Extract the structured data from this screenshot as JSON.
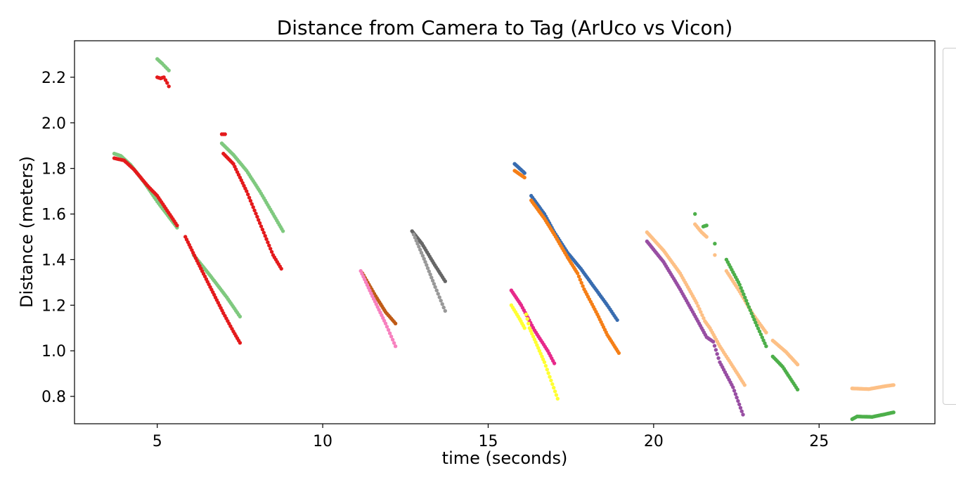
{
  "chart_data": {
    "type": "scatter",
    "title": "Distance from Camera to Tag (ArUco vs Vicon)",
    "xlabel": "time (seconds)",
    "ylabel": "Distance (meters)",
    "xlim": [
      2.5,
      28.5
    ],
    "ylim": [
      0.68,
      2.36
    ],
    "xticks": [
      5,
      10,
      15,
      20,
      25
    ],
    "xtick_labels": [
      "5",
      "10",
      "15",
      "20",
      "25"
    ],
    "yticks": [
      0.8,
      1.0,
      1.2,
      1.4,
      1.6,
      1.8,
      2.0,
      2.2
    ],
    "ytick_labels": [
      "0.8",
      "1.0",
      "1.2",
      "1.4",
      "1.6",
      "1.8",
      "2.0",
      "2.2"
    ],
    "grid": false,
    "legend": "right (cut off)",
    "segments": [
      {
        "color": "#7fc97f",
        "points": [
          [
            3.7,
            1.865
          ],
          [
            3.9,
            1.855
          ],
          [
            4.2,
            1.815
          ],
          [
            4.6,
            1.74
          ],
          [
            5.0,
            1.655
          ],
          [
            5.6,
            1.54
          ]
        ]
      },
      {
        "color": "#e41a1c",
        "points": [
          [
            3.7,
            1.845
          ],
          [
            4.0,
            1.835
          ],
          [
            4.3,
            1.795
          ],
          [
            4.7,
            1.725
          ],
          [
            5.0,
            1.68
          ],
          [
            5.3,
            1.615
          ],
          [
            5.6,
            1.55
          ]
        ]
      },
      {
        "color": "#7fc97f",
        "points": [
          [
            6.1,
            1.42
          ],
          [
            6.6,
            1.33
          ],
          [
            7.1,
            1.235
          ],
          [
            7.5,
            1.15
          ]
        ]
      },
      {
        "color": "#e41a1c",
        "points": [
          [
            5.85,
            1.5
          ],
          [
            6.2,
            1.395
          ],
          [
            6.6,
            1.28
          ],
          [
            7.0,
            1.165
          ],
          [
            7.3,
            1.085
          ],
          [
            7.5,
            1.035
          ]
        ]
      },
      {
        "color": "#7fc97f",
        "points": [
          [
            5.0,
            2.28
          ],
          [
            5.15,
            2.26
          ],
          [
            5.25,
            2.245
          ],
          [
            5.35,
            2.23
          ]
        ]
      },
      {
        "color": "#e41a1c",
        "points": [
          [
            5.0,
            2.2
          ],
          [
            5.1,
            2.195
          ],
          [
            5.2,
            2.2
          ],
          [
            5.3,
            2.175
          ],
          [
            5.35,
            2.16
          ]
        ]
      },
      {
        "color": "#7fc97f",
        "points": [
          [
            6.95,
            1.91
          ],
          [
            7.3,
            1.86
          ],
          [
            7.7,
            1.79
          ],
          [
            8.1,
            1.7
          ],
          [
            8.5,
            1.6
          ],
          [
            8.8,
            1.525
          ]
        ]
      },
      {
        "color": "#e41a1c",
        "points": [
          [
            6.95,
            1.95
          ],
          [
            7.05,
            1.95
          ]
        ]
      },
      {
        "color": "#e41a1c",
        "points": [
          [
            7.0,
            1.865
          ],
          [
            7.3,
            1.82
          ],
          [
            7.7,
            1.7
          ],
          [
            8.1,
            1.56
          ],
          [
            8.5,
            1.42
          ],
          [
            8.75,
            1.36
          ]
        ]
      },
      {
        "color": "#bf5b17",
        "points": [
          [
            11.2,
            1.34
          ],
          [
            11.6,
            1.24
          ],
          [
            11.9,
            1.17
          ],
          [
            12.2,
            1.12
          ]
        ]
      },
      {
        "color": "#f781bf",
        "points": [
          [
            11.15,
            1.35
          ],
          [
            11.5,
            1.24
          ],
          [
            11.9,
            1.12
          ],
          [
            12.2,
            1.02
          ]
        ]
      },
      {
        "color": "#666666",
        "points": [
          [
            12.7,
            1.525
          ],
          [
            13.0,
            1.47
          ],
          [
            13.35,
            1.385
          ],
          [
            13.7,
            1.305
          ]
        ]
      },
      {
        "color": "#999999",
        "points": [
          [
            12.75,
            1.51
          ],
          [
            13.1,
            1.39
          ],
          [
            13.4,
            1.28
          ],
          [
            13.7,
            1.175
          ]
        ]
      },
      {
        "color": "#e7298a",
        "points": [
          [
            15.7,
            1.265
          ],
          [
            16.0,
            1.2
          ],
          [
            16.4,
            1.09
          ],
          [
            16.8,
            1.0
          ],
          [
            17.0,
            0.945
          ]
        ]
      },
      {
        "color": "#ffff33",
        "points": [
          [
            15.7,
            1.2
          ],
          [
            15.95,
            1.14
          ],
          [
            16.1,
            1.1
          ]
        ]
      },
      {
        "color": "#ffff33",
        "points": [
          [
            16.15,
            1.16
          ],
          [
            16.25,
            1.1
          ],
          [
            16.4,
            1.05
          ],
          [
            16.7,
            0.95
          ],
          [
            16.9,
            0.87
          ],
          [
            17.1,
            0.79
          ]
        ]
      },
      {
        "color": "#386cb0",
        "points": [
          [
            15.8,
            1.82
          ],
          [
            15.95,
            1.8
          ],
          [
            16.1,
            1.78
          ]
        ]
      },
      {
        "color": "#f57f17",
        "points": [
          [
            15.8,
            1.79
          ],
          [
            15.95,
            1.775
          ],
          [
            16.1,
            1.76
          ]
        ]
      },
      {
        "color": "#386cb0",
        "points": [
          [
            16.3,
            1.68
          ],
          [
            16.7,
            1.6
          ],
          [
            17.0,
            1.52
          ],
          [
            17.4,
            1.43
          ],
          [
            17.8,
            1.36
          ],
          [
            18.2,
            1.28
          ],
          [
            18.6,
            1.2
          ],
          [
            18.9,
            1.135
          ]
        ]
      },
      {
        "color": "#f57f17",
        "points": [
          [
            16.3,
            1.66
          ],
          [
            16.7,
            1.58
          ],
          [
            17.0,
            1.51
          ],
          [
            17.4,
            1.41
          ],
          [
            17.7,
            1.34
          ],
          [
            17.9,
            1.27
          ],
          [
            18.3,
            1.16
          ],
          [
            18.6,
            1.07
          ],
          [
            18.95,
            0.99
          ]
        ]
      },
      {
        "color": "#984ea3",
        "points": [
          [
            19.8,
            1.48
          ],
          [
            20.3,
            1.39
          ],
          [
            20.8,
            1.27
          ],
          [
            21.3,
            1.14
          ],
          [
            21.6,
            1.06
          ],
          [
            21.8,
            1.04
          ],
          [
            22.0,
            0.95
          ],
          [
            22.4,
            0.84
          ],
          [
            22.7,
            0.72
          ]
        ]
      },
      {
        "color": "#fdc086",
        "points": [
          [
            19.8,
            1.52
          ],
          [
            20.3,
            1.44
          ],
          [
            20.8,
            1.34
          ],
          [
            21.3,
            1.21
          ],
          [
            21.55,
            1.13
          ],
          [
            21.7,
            1.1
          ],
          [
            22.0,
            1.02
          ],
          [
            22.4,
            0.93
          ],
          [
            22.75,
            0.85
          ]
        ]
      },
      {
        "color": "#4daf4a",
        "points": [
          [
            21.25,
            1.6
          ]
        ]
      },
      {
        "color": "#fdc086",
        "points": [
          [
            21.25,
            1.555
          ],
          [
            21.45,
            1.52
          ],
          [
            21.6,
            1.5
          ]
        ]
      },
      {
        "color": "#4daf4a",
        "points": [
          [
            21.5,
            1.545
          ],
          [
            21.6,
            1.55
          ]
        ]
      },
      {
        "color": "#4daf4a",
        "points": [
          [
            21.85,
            1.47
          ]
        ]
      },
      {
        "color": "#fdc086",
        "points": [
          [
            21.85,
            1.42
          ]
        ]
      },
      {
        "color": "#fdc086",
        "points": [
          [
            22.2,
            1.35
          ],
          [
            22.6,
            1.26
          ],
          [
            23.0,
            1.16
          ],
          [
            23.4,
            1.08
          ]
        ]
      },
      {
        "color": "#4daf4a",
        "points": [
          [
            22.2,
            1.4
          ],
          [
            22.6,
            1.29
          ],
          [
            23.0,
            1.15
          ],
          [
            23.4,
            1.02
          ]
        ]
      },
      {
        "color": "#fdc086",
        "points": [
          [
            23.6,
            1.045
          ],
          [
            24.0,
            0.995
          ],
          [
            24.35,
            0.94
          ]
        ]
      },
      {
        "color": "#4daf4a",
        "points": [
          [
            23.6,
            0.975
          ],
          [
            23.9,
            0.93
          ],
          [
            24.35,
            0.83
          ]
        ]
      },
      {
        "color": "#fdc086",
        "points": [
          [
            26.0,
            0.835
          ],
          [
            26.5,
            0.832
          ],
          [
            27.0,
            0.845
          ],
          [
            27.25,
            0.85
          ]
        ]
      },
      {
        "color": "#4daf4a",
        "points": [
          [
            26.0,
            0.7
          ],
          [
            26.15,
            0.712
          ],
          [
            26.6,
            0.71
          ],
          [
            27.0,
            0.722
          ],
          [
            27.25,
            0.73
          ]
        ]
      }
    ]
  }
}
